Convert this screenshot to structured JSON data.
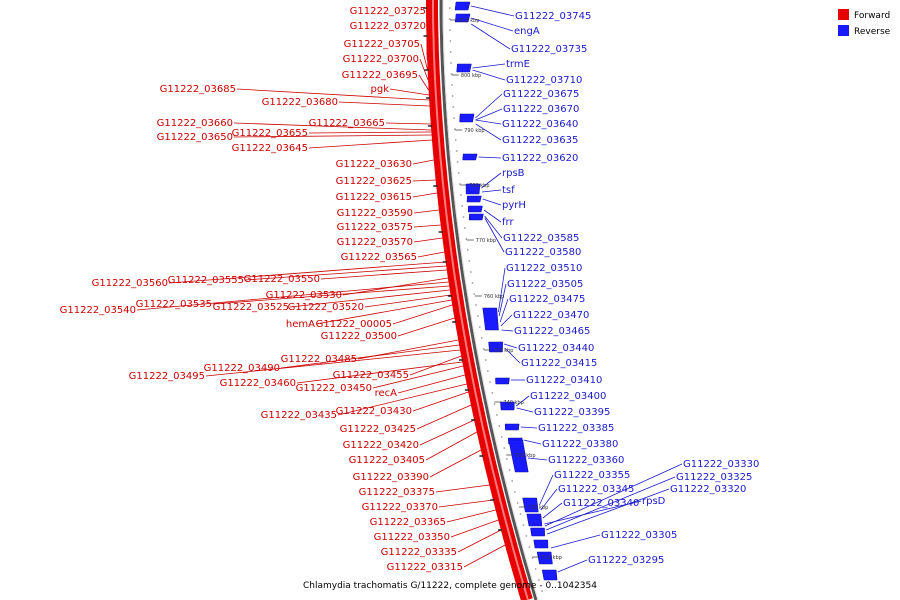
{
  "caption": "Chlamydia trachomatis G/11222, complete genome - 0..1042354",
  "legend": {
    "forward_label": "Forward",
    "reverse_label": "Reverse",
    "forward_color": "#e60000",
    "reverse_color": "#1a1aff"
  },
  "scale_ticks": [
    "810 kbp",
    "800 kbp",
    "790 kbp",
    "780 kbp",
    "770 kbp",
    "760 kbp",
    "750 kbp",
    "740 kbp",
    "730 kbp",
    "720 kbp",
    "710 kbp"
  ],
  "forward_labels": [
    "G11222_03725",
    "G11222_03720",
    "G11222_03705",
    "G11222_03700",
    "G11222_03695",
    "G11222_03685",
    "pgk",
    "G11222_03680",
    "G11222_03660",
    "G11222_03665",
    "G11222_03650",
    "G11222_03655",
    "G11222_03645",
    "G11222_03630",
    "G11222_03625",
    "G11222_03615",
    "G11222_03590",
    "G11222_03575",
    "G11222_03570",
    "G11222_03565",
    "G11222_03560",
    "G11222_03555",
    "G11222_03550",
    "G11222_03530",
    "G11222_03540",
    "G11222_03535",
    "G11222_03525",
    "G11222_03520",
    "hemA",
    "G11222_00005",
    "G11222_03500",
    "G11222_03485",
    "G11222_03490",
    "G11222_03495",
    "G11222_03455",
    "G11222_03460",
    "G11222_03450",
    "recA",
    "G11222_03435",
    "G11222_03430",
    "G11222_03425",
    "G11222_03420",
    "G11222_03405",
    "G11222_03390",
    "G11222_03375",
    "G11222_03370",
    "G11222_03365",
    "G11222_03350",
    "G11222_03335",
    "G11222_03315"
  ],
  "reverse_labels": [
    "G11222_03745",
    "engA",
    "G11222_03735",
    "trmE",
    "G11222_03710",
    "G11222_03675",
    "G11222_03670",
    "G11222_03640",
    "G11222_03635",
    "G11222_03620",
    "rpsB",
    "tsf",
    "pyrH",
    "frr",
    "G11222_03585",
    "G11222_03580",
    "G11222_03510",
    "G11222_03505",
    "G11222_03475",
    "G11222_03470",
    "G11222_03465",
    "G11222_03440",
    "G11222_03415",
    "G11222_03410",
    "G11222_03400",
    "G11222_03395",
    "G11222_03385",
    "G11222_03380",
    "G11222_03360",
    "G11222_03355",
    "G11222_03345",
    "G11222_03340",
    "rpsD",
    "G11222_03330",
    "G11222_03325",
    "G11222_03320",
    "G11222_03305",
    "G11222_03295"
  ]
}
